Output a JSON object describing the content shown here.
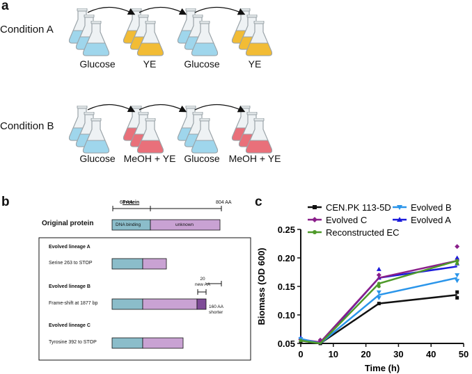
{
  "panel_a": {
    "label": "a",
    "condition_a": {
      "label": "Condition A",
      "steps": [
        "Glucose",
        "YE",
        "Glucose",
        "YE"
      ],
      "step_colors": [
        "#9fd6ec",
        "#f2bc35",
        "#9fd6ec",
        "#f2bc35"
      ]
    },
    "condition_b": {
      "label": "Condition B",
      "steps": [
        "Glucose",
        "MeOH + YE",
        "Glucose",
        "MeOH + YE"
      ],
      "step_colors": [
        "#9fd6ec",
        "#e9707a",
        "#9fd6ec",
        "#e9707a"
      ]
    }
  },
  "panel_b": {
    "label": "b",
    "protein_label": "Protein",
    "aa_65": "65 AA",
    "aa_804": "804 AA",
    "original_label": "Original protein",
    "domain_dna": "DNA binding",
    "domain_unknown": "unknown",
    "lineage_a": {
      "title": "Evolved lineage A",
      "desc": "Serine 263 to STOP"
    },
    "lineage_b": {
      "title": "Evolved lineage B",
      "desc": "Frame-shift at 1877 bp",
      "new_aa": "20\nnew AA",
      "shorter": "160 AA\nshorter"
    },
    "lineage_c": {
      "title": "Evolved lineage C",
      "desc": "Tyrosine 392 to STOP"
    },
    "colors": {
      "dna": "#8bbdca",
      "unknown": "#c9a2d3",
      "new_aa": "#7e4c97"
    }
  },
  "panel_c": {
    "label": "c"
  },
  "chart_data": {
    "type": "line",
    "xlabel": "Time (h)",
    "ylabel": "Biomass (OD 600)",
    "xlim": [
      0,
      50
    ],
    "ylim": [
      0.05,
      0.25
    ],
    "xticks": [
      0,
      10,
      20,
      30,
      40,
      50
    ],
    "yticks": [
      0.05,
      0.1,
      0.15,
      0.2,
      0.25
    ],
    "x": [
      0,
      6,
      24,
      48
    ],
    "legend_placement": "top",
    "series": [
      {
        "name": "CEN.PK 113-5D",
        "color": "#111111",
        "marker": "square",
        "values": [
          0.055,
          0.05,
          0.12,
          0.135
        ],
        "points": [
          [
            0,
            0.053
          ],
          [
            0,
            0.057
          ],
          [
            6,
            0.05
          ],
          [
            6,
            0.052
          ],
          [
            24,
            0.12
          ],
          [
            48,
            0.13
          ],
          [
            48,
            0.14
          ]
        ]
      },
      {
        "name": "Evolved A",
        "color": "#1a1adb",
        "marker": "triangle-up",
        "values": [
          0.058,
          0.05,
          0.165,
          0.185
        ],
        "points": [
          [
            0,
            0.06
          ],
          [
            24,
            0.18
          ],
          [
            24,
            0.165
          ],
          [
            48,
            0.19
          ],
          [
            48,
            0.2
          ]
        ]
      },
      {
        "name": "Evolved C",
        "color": "#8a1f8a",
        "marker": "diamond",
        "values": [
          0.057,
          0.052,
          0.165,
          0.195
        ],
        "points": [
          [
            0,
            0.057
          ],
          [
            6,
            0.056
          ],
          [
            24,
            0.17
          ],
          [
            48,
            0.22
          ],
          [
            48,
            0.195
          ]
        ]
      },
      {
        "name": "Evolved B",
        "color": "#2a95ea",
        "marker": "triangle-down",
        "values": [
          0.058,
          0.05,
          0.135,
          0.165
        ],
        "points": [
          [
            0,
            0.058
          ],
          [
            24,
            0.14
          ],
          [
            24,
            0.13
          ],
          [
            48,
            0.16
          ],
          [
            48,
            0.17
          ]
        ]
      },
      {
        "name": "Reconstructed EC",
        "color": "#4f9a2a",
        "marker": "circle",
        "values": [
          0.055,
          0.05,
          0.155,
          0.195
        ],
        "points": [
          [
            0,
            0.055
          ],
          [
            24,
            0.155
          ],
          [
            24,
            0.15
          ],
          [
            48,
            0.195
          ],
          [
            48,
            0.19
          ]
        ]
      }
    ]
  }
}
